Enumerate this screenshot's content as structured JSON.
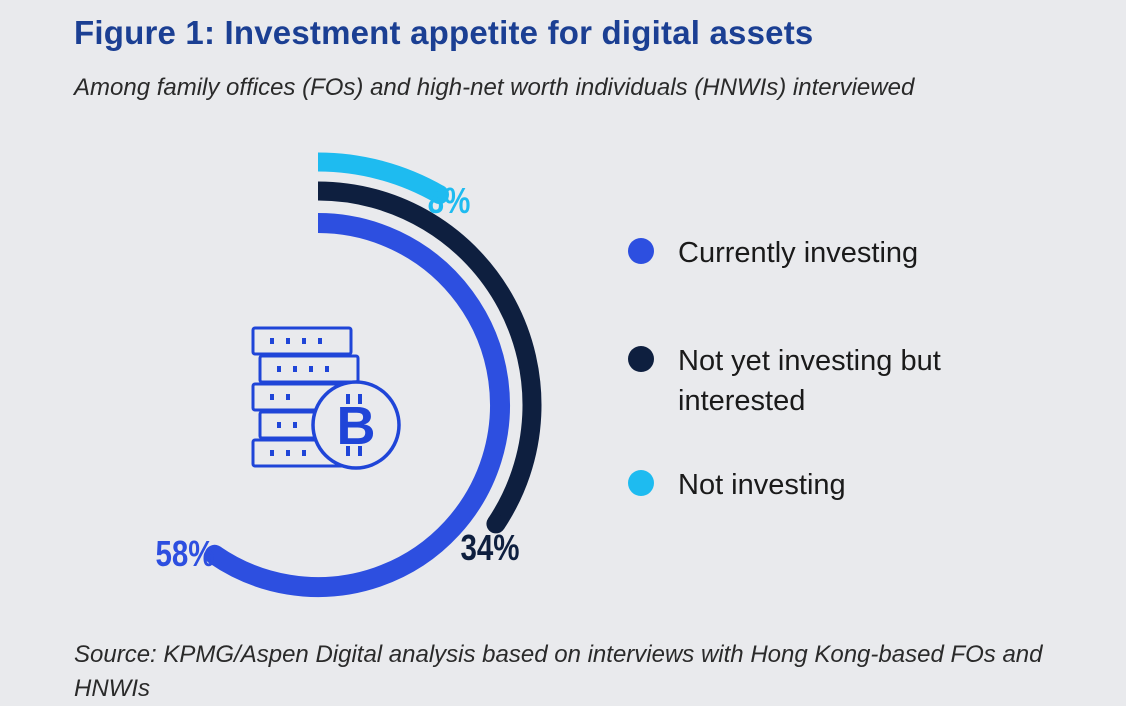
{
  "title": "Figure 1: Investment appetite for digital assets",
  "subtitle": "Among family offices (FOs) and high-net worth individuals (HNWIs) interviewed",
  "source": "Source: KPMG/Aspen Digital analysis based on interviews with Hong Kong-based FOs and HNWIs",
  "icon": {
    "name": "bitcoin-server-icon",
    "glyph": "B"
  },
  "colors": {
    "currently_investing": "#2d4fe0",
    "interested": "#0e1f3f",
    "not_investing": "#1ebbf0",
    "title": "#1b3f93"
  },
  "chart_data": {
    "type": "radial-bar",
    "title": "Figure 1: Investment appetite for digital assets",
    "subtitle": "Among family offices (FOs) and high-net worth individuals (HNWIs) interviewed",
    "unit": "%",
    "max": 100,
    "series": [
      {
        "key": "currently_investing",
        "name": "Currently investing",
        "value": 58,
        "label": "58%"
      },
      {
        "key": "interested",
        "name": "Not yet investing but interested",
        "value": 34,
        "label": "34%"
      },
      {
        "key": "not_investing",
        "name": "Not investing",
        "value": 8,
        "label": "8%"
      }
    ]
  },
  "legend": {
    "items": [
      {
        "label": "Currently investing"
      },
      {
        "label": "Not yet investing but interested"
      },
      {
        "label": "Not investing"
      }
    ]
  }
}
